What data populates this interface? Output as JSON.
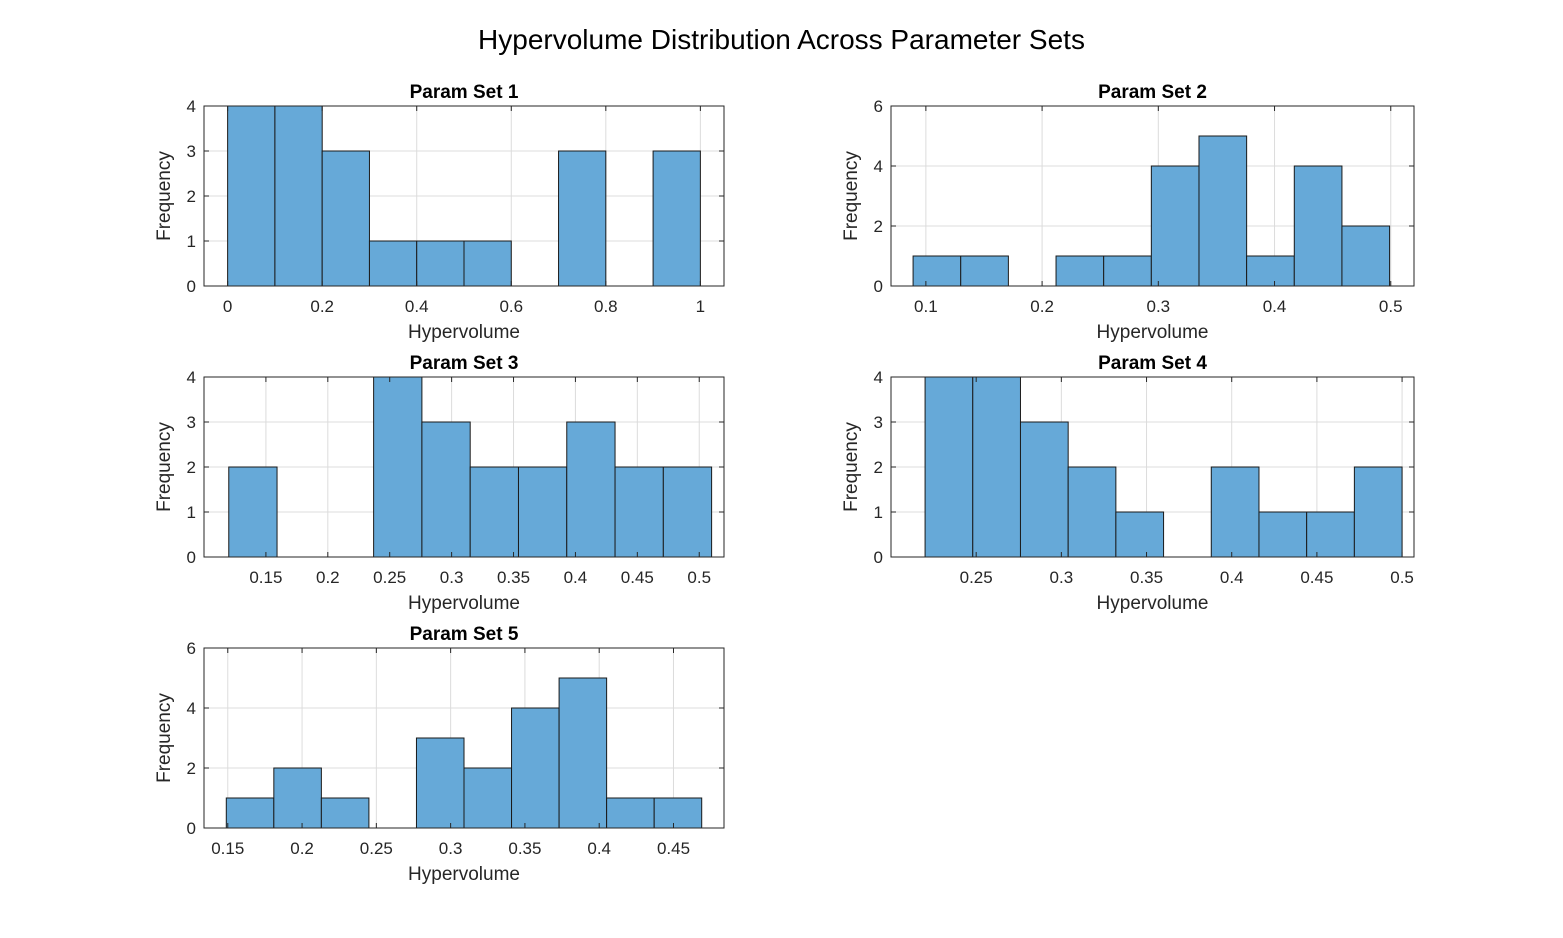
{
  "figure": {
    "title": "Hypervolume Distribution Across Parameter Sets"
  },
  "colors": {
    "bar_fill": "#66a9d8",
    "bar_edge": "#1a1a1a",
    "grid": "#dcdcdc",
    "axis": "#262626"
  },
  "chart_data": [
    {
      "type": "bar",
      "title": "Param Set 1",
      "xlabel": "Hypervolume",
      "ylabel": "Frequency",
      "xlim": [
        -0.05,
        1.05
      ],
      "ylim": [
        0,
        4
      ],
      "xticks": [
        0,
        0.2,
        0.4,
        0.6,
        0.8,
        1
      ],
      "xtick_labels": [
        "0",
        "0.2",
        "0.4",
        "0.6",
        "0.8",
        "1"
      ],
      "yticks": [
        0,
        1,
        2,
        3,
        4
      ],
      "ytick_labels": [
        "0",
        "1",
        "2",
        "3",
        "4"
      ],
      "bin_edges": [
        0,
        0.1,
        0.2,
        0.3,
        0.4,
        0.5,
        0.6,
        0.7,
        0.8,
        0.9,
        1.0
      ],
      "counts": [
        4,
        4,
        3,
        1,
        1,
        1,
        0,
        3,
        0,
        3
      ],
      "grid": true
    },
    {
      "type": "bar",
      "title": "Param Set 2",
      "xlabel": "Hypervolume",
      "ylabel": "Frequency",
      "xlim": [
        0.07,
        0.52
      ],
      "ylim": [
        0,
        6
      ],
      "xticks": [
        0.1,
        0.2,
        0.3,
        0.4,
        0.5
      ],
      "xtick_labels": [
        "0.1",
        "0.2",
        "0.3",
        "0.4",
        "0.5"
      ],
      "yticks": [
        0,
        2,
        4,
        6
      ],
      "ytick_labels": [
        "0",
        "2",
        "4",
        "6"
      ],
      "bin_edges": [
        0.089,
        0.13,
        0.171,
        0.212,
        0.253,
        0.294,
        0.335,
        0.376,
        0.417,
        0.458,
        0.499
      ],
      "counts": [
        1,
        1,
        0,
        1,
        1,
        4,
        5,
        1,
        4,
        2
      ],
      "grid": true
    },
    {
      "type": "bar",
      "title": "Param Set 3",
      "xlabel": "Hypervolume",
      "ylabel": "Frequency",
      "xlim": [
        0.1,
        0.52
      ],
      "ylim": [
        0,
        4
      ],
      "xticks": [
        0.15,
        0.2,
        0.25,
        0.3,
        0.35,
        0.4,
        0.45,
        0.5
      ],
      "xtick_labels": [
        "0.15",
        "0.2",
        "0.25",
        "0.3",
        "0.35",
        "0.4",
        "0.45",
        "0.5"
      ],
      "yticks": [
        0,
        1,
        2,
        3,
        4
      ],
      "ytick_labels": [
        "0",
        "1",
        "2",
        "3",
        "4"
      ],
      "bin_edges": [
        0.12,
        0.159,
        0.198,
        0.237,
        0.276,
        0.315,
        0.354,
        0.393,
        0.432,
        0.471,
        0.51
      ],
      "counts": [
        2,
        0,
        0,
        4,
        3,
        2,
        2,
        3,
        2,
        2
      ],
      "grid": true
    },
    {
      "type": "bar",
      "title": "Param Set 4",
      "xlabel": "Hypervolume",
      "ylabel": "Frequency",
      "xlim": [
        0.2,
        0.507
      ],
      "ylim": [
        0,
        4
      ],
      "xticks": [
        0.25,
        0.3,
        0.35,
        0.4,
        0.45,
        0.5
      ],
      "xtick_labels": [
        "0.25",
        "0.3",
        "0.35",
        "0.4",
        "0.45",
        "0.5"
      ],
      "yticks": [
        0,
        1,
        2,
        3,
        4
      ],
      "ytick_labels": [
        "0",
        "1",
        "2",
        "3",
        "4"
      ],
      "bin_edges": [
        0.22,
        0.248,
        0.276,
        0.304,
        0.332,
        0.36,
        0.388,
        0.416,
        0.444,
        0.472,
        0.5
      ],
      "counts": [
        4,
        4,
        3,
        2,
        1,
        0,
        2,
        1,
        1,
        2
      ],
      "grid": true
    },
    {
      "type": "bar",
      "title": "Param Set 5",
      "xlabel": "Hypervolume",
      "ylabel": "Frequency",
      "xlim": [
        0.134,
        0.484
      ],
      "ylim": [
        0,
        6
      ],
      "xticks": [
        0.15,
        0.2,
        0.25,
        0.3,
        0.35,
        0.4,
        0.45
      ],
      "xtick_labels": [
        "0.15",
        "0.2",
        "0.25",
        "0.3",
        "0.35",
        "0.4",
        "0.45"
      ],
      "yticks": [
        0,
        2,
        4,
        6
      ],
      "ytick_labels": [
        "0",
        "2",
        "4",
        "6"
      ],
      "bin_edges": [
        0.149,
        0.181,
        0.213,
        0.245,
        0.277,
        0.309,
        0.341,
        0.373,
        0.405,
        0.437,
        0.469
      ],
      "counts": [
        1,
        2,
        1,
        0,
        3,
        2,
        4,
        5,
        1,
        1
      ],
      "grid": true
    }
  ]
}
